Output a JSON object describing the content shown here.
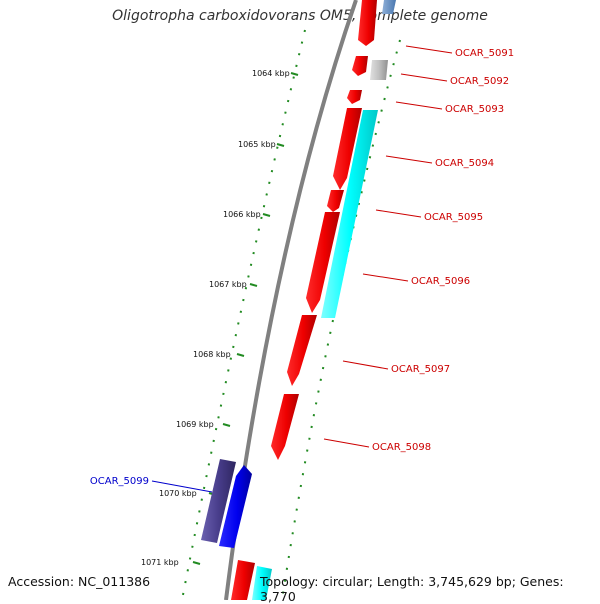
{
  "title": "Oligotropha carboxidovorans OM5, complete genome",
  "accession": "Accession: NC_011386",
  "stats": "Topology: circular; Length: 3,745,629 bp; Genes: 3,770",
  "kbp_labels": [
    "1064 kbp",
    "1065 kbp",
    "1066 kbp",
    "1067 kbp",
    "1068 kbp",
    "1069 kbp",
    "1070 kbp",
    "1071 kbp"
  ],
  "genes": [
    {
      "name": "OCAR_5091",
      "color": "#cc0000"
    },
    {
      "name": "OCAR_5092",
      "color": "#cc0000"
    },
    {
      "name": "OCAR_5093",
      "color": "#cc0000"
    },
    {
      "name": "OCAR_5094",
      "color": "#cc0000"
    },
    {
      "name": "OCAR_5095",
      "color": "#cc0000"
    },
    {
      "name": "OCAR_5096",
      "color": "#cc0000"
    },
    {
      "name": "OCAR_5097",
      "color": "#cc0000"
    },
    {
      "name": "OCAR_5098",
      "color": "#cc0000"
    },
    {
      "name": "OCAR_5099",
      "color": "#0000cc"
    }
  ],
  "colors": {
    "forward_gene": "#ff0000",
    "reverse_gene": "#0000ff",
    "cds_feature": "#00ffff",
    "other_feature": "#c0c0c0",
    "dark_feature": "#483d8b",
    "backbone": "#808080",
    "tick": "#228b22"
  }
}
